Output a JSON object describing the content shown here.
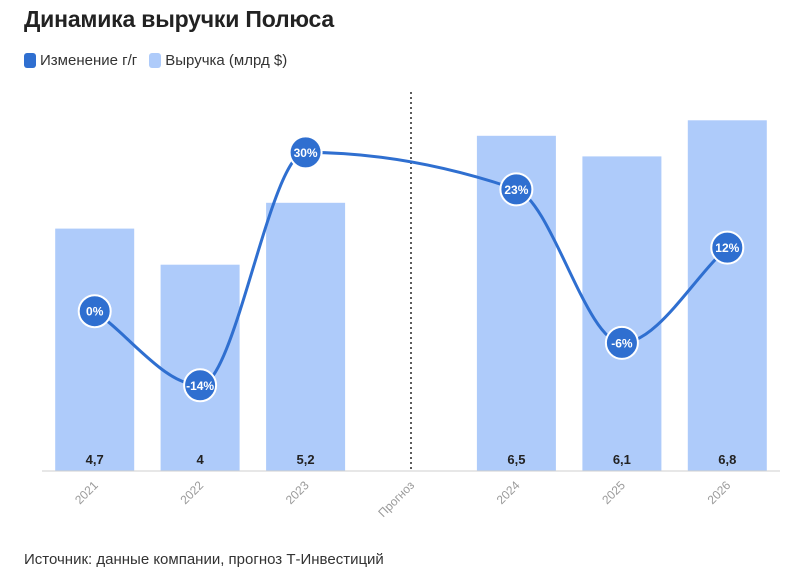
{
  "title": "Динамика выручки Полюса",
  "legend": {
    "items": [
      {
        "label": "Изменение г/г",
        "color": "#2f6fd0"
      },
      {
        "label": "Выручка (млрд $)",
        "color": "#aecbfa"
      }
    ]
  },
  "source": "Источник: данные компании, прогноз Т-Инвестиций",
  "chart_data": {
    "type": "bar",
    "categories": [
      "2021",
      "2022",
      "2023",
      "Прогноз",
      "2024",
      "2025",
      "2026"
    ],
    "series": [
      {
        "name": "Выручка (млрд $)",
        "type": "bar",
        "values": [
          4.7,
          4,
          5.2,
          null,
          6.5,
          6.1,
          6.8
        ],
        "data_labels": [
          "4,7",
          "4",
          "5,2",
          "",
          "6,5",
          "6,1",
          "6,8"
        ],
        "color": "#aecbfa"
      },
      {
        "name": "Изменение г/г",
        "type": "line",
        "smooth": true,
        "values": [
          0,
          -14,
          30,
          null,
          23,
          -6,
          12
        ],
        "data_labels": [
          "0%",
          "-14%",
          "30%",
          "",
          "23%",
          "-6%",
          "12%"
        ],
        "color": "#2f6fd0"
      }
    ],
    "divider_category": "Прогноз",
    "ylim_bar": [
      0,
      7
    ],
    "ylim_line": [
      -30,
      38
    ],
    "grid": false,
    "legend_position": "top-left"
  }
}
